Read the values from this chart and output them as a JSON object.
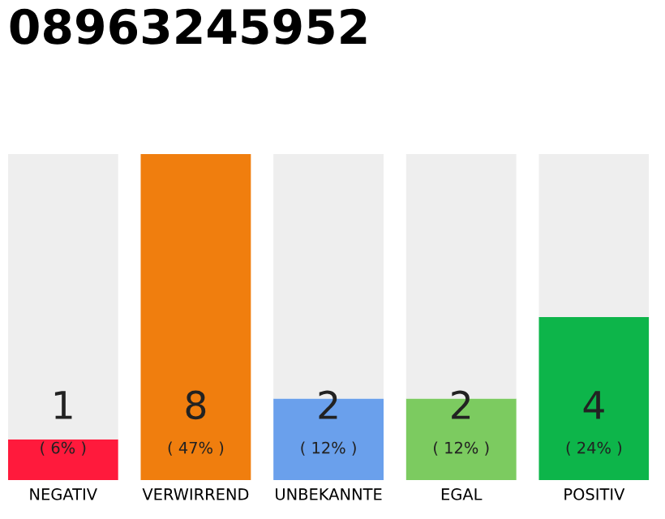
{
  "chart_data": {
    "type": "bar",
    "title": "08963245952",
    "stacked": true,
    "categories": [
      "NEGATIV",
      "VERWIRREND",
      "UNBEKANNTE",
      "EGAL",
      "POSITIV"
    ],
    "series": [
      {
        "colors": [
          "#ff1a3c",
          "#f07e0e",
          "#6aa0ec",
          "#7ccb60",
          "#0db54a"
        ],
        "values": [
          1,
          8,
          2,
          2,
          4
        ],
        "value_labels": [
          "1",
          "8",
          "2",
          "2",
          "4"
        ]
      },
      {
        "color": "#eeeeee",
        "values": [
          7,
          0,
          6,
          6,
          4
        ]
      }
    ],
    "annotations": [
      "( 6% )",
      "( 47% )",
      "( 12% )",
      "( 12% )",
      "( 24% )"
    ],
    "ylim": [
      0,
      8
    ],
    "tick_labels": "x",
    "grid": false,
    "legend": false
  }
}
